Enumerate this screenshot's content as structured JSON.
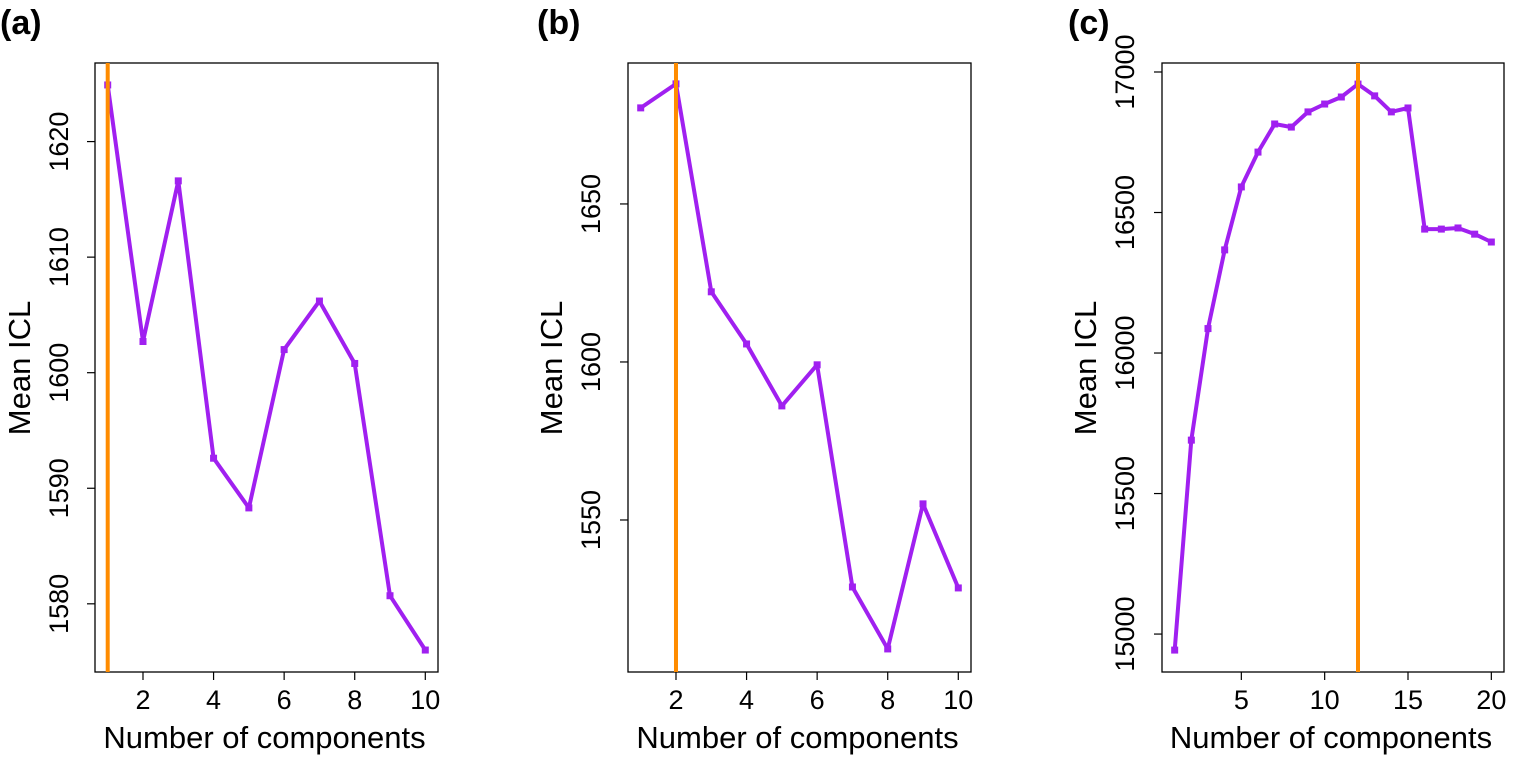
{
  "figure": {
    "line_color": "#A020F0",
    "highlight_color": "#FF8C00",
    "axis_color": "#000000"
  },
  "chart_data": [
    {
      "type": "line",
      "panel_label": "(a)",
      "title": "",
      "xlabel": "Number of components",
      "ylabel": "Mean ICL",
      "x": [
        1,
        2,
        3,
        4,
        5,
        6,
        7,
        8,
        9,
        10
      ],
      "series": [
        {
          "name": "Mean ICL",
          "values": [
            1624.9,
            1602.7,
            1616.6,
            1592.6,
            1588.3,
            1602.0,
            1606.2,
            1600.8,
            1580.7,
            1576.0
          ]
        }
      ],
      "highlight_x": 1,
      "xlim": [
        0.64,
        10.36
      ],
      "ylim": [
        1574.1,
        1626.8
      ],
      "xticks": [
        2,
        4,
        6,
        8,
        10
      ],
      "xtick_labels": [
        "2",
        "4",
        "6",
        "8",
        "10"
      ],
      "yticks": [
        1580,
        1590,
        1600,
        1610,
        1620
      ],
      "ytick_labels": [
        "1580",
        "1590",
        "1600",
        "1610",
        "1620"
      ],
      "grid": false,
      "legend": "none"
    },
    {
      "type": "line",
      "panel_label": "(b)",
      "title": "",
      "xlabel": "Number of components",
      "ylabel": "Mean ICL",
      "x": [
        1,
        2,
        3,
        4,
        5,
        6,
        7,
        8,
        9,
        10
      ],
      "series": [
        {
          "name": "Mean ICL",
          "values": [
            1680.4,
            1688.0,
            1622.2,
            1605.7,
            1586.1,
            1599.1,
            1528.8,
            1509.2,
            1555.1,
            1528.5
          ]
        }
      ],
      "highlight_x": 2,
      "xlim": [
        0.64,
        10.36
      ],
      "ylim": [
        1501.9,
        1694.6
      ],
      "xticks": [
        2,
        4,
        6,
        8,
        10
      ],
      "xtick_labels": [
        "2",
        "4",
        "6",
        "8",
        "10"
      ],
      "yticks": [
        1550,
        1600,
        1650
      ],
      "ytick_labels": [
        "1550",
        "1600",
        "1650"
      ],
      "grid": false,
      "legend": "none"
    },
    {
      "type": "line",
      "panel_label": "(c)",
      "title": "",
      "xlabel": "Number of components",
      "ylabel": "Mean ICL",
      "x": [
        1,
        2,
        3,
        4,
        5,
        6,
        7,
        8,
        9,
        10,
        11,
        12,
        13,
        14,
        15,
        16,
        17,
        18,
        19,
        20
      ],
      "series": [
        {
          "name": "Mean ICL",
          "values": [
            14943,
            15690,
            16087,
            16367,
            16591,
            16715,
            16815,
            16804,
            16858,
            16886,
            16911,
            16957,
            16915,
            16858,
            16872,
            16441,
            16441,
            16445,
            16423,
            16395
          ]
        }
      ],
      "highlight_x": 12,
      "xlim": [
        0.24,
        20.76
      ],
      "ylim": [
        14865,
        17032
      ],
      "xticks": [
        5,
        10,
        15,
        20
      ],
      "xtick_labels": [
        "5",
        "10",
        "15",
        "20"
      ],
      "yticks": [
        15000,
        15500,
        16000,
        16500,
        17000
      ],
      "ytick_labels": [
        "15000",
        "15500",
        "16000",
        "16500",
        "17000"
      ],
      "grid": false,
      "legend": "none"
    }
  ]
}
